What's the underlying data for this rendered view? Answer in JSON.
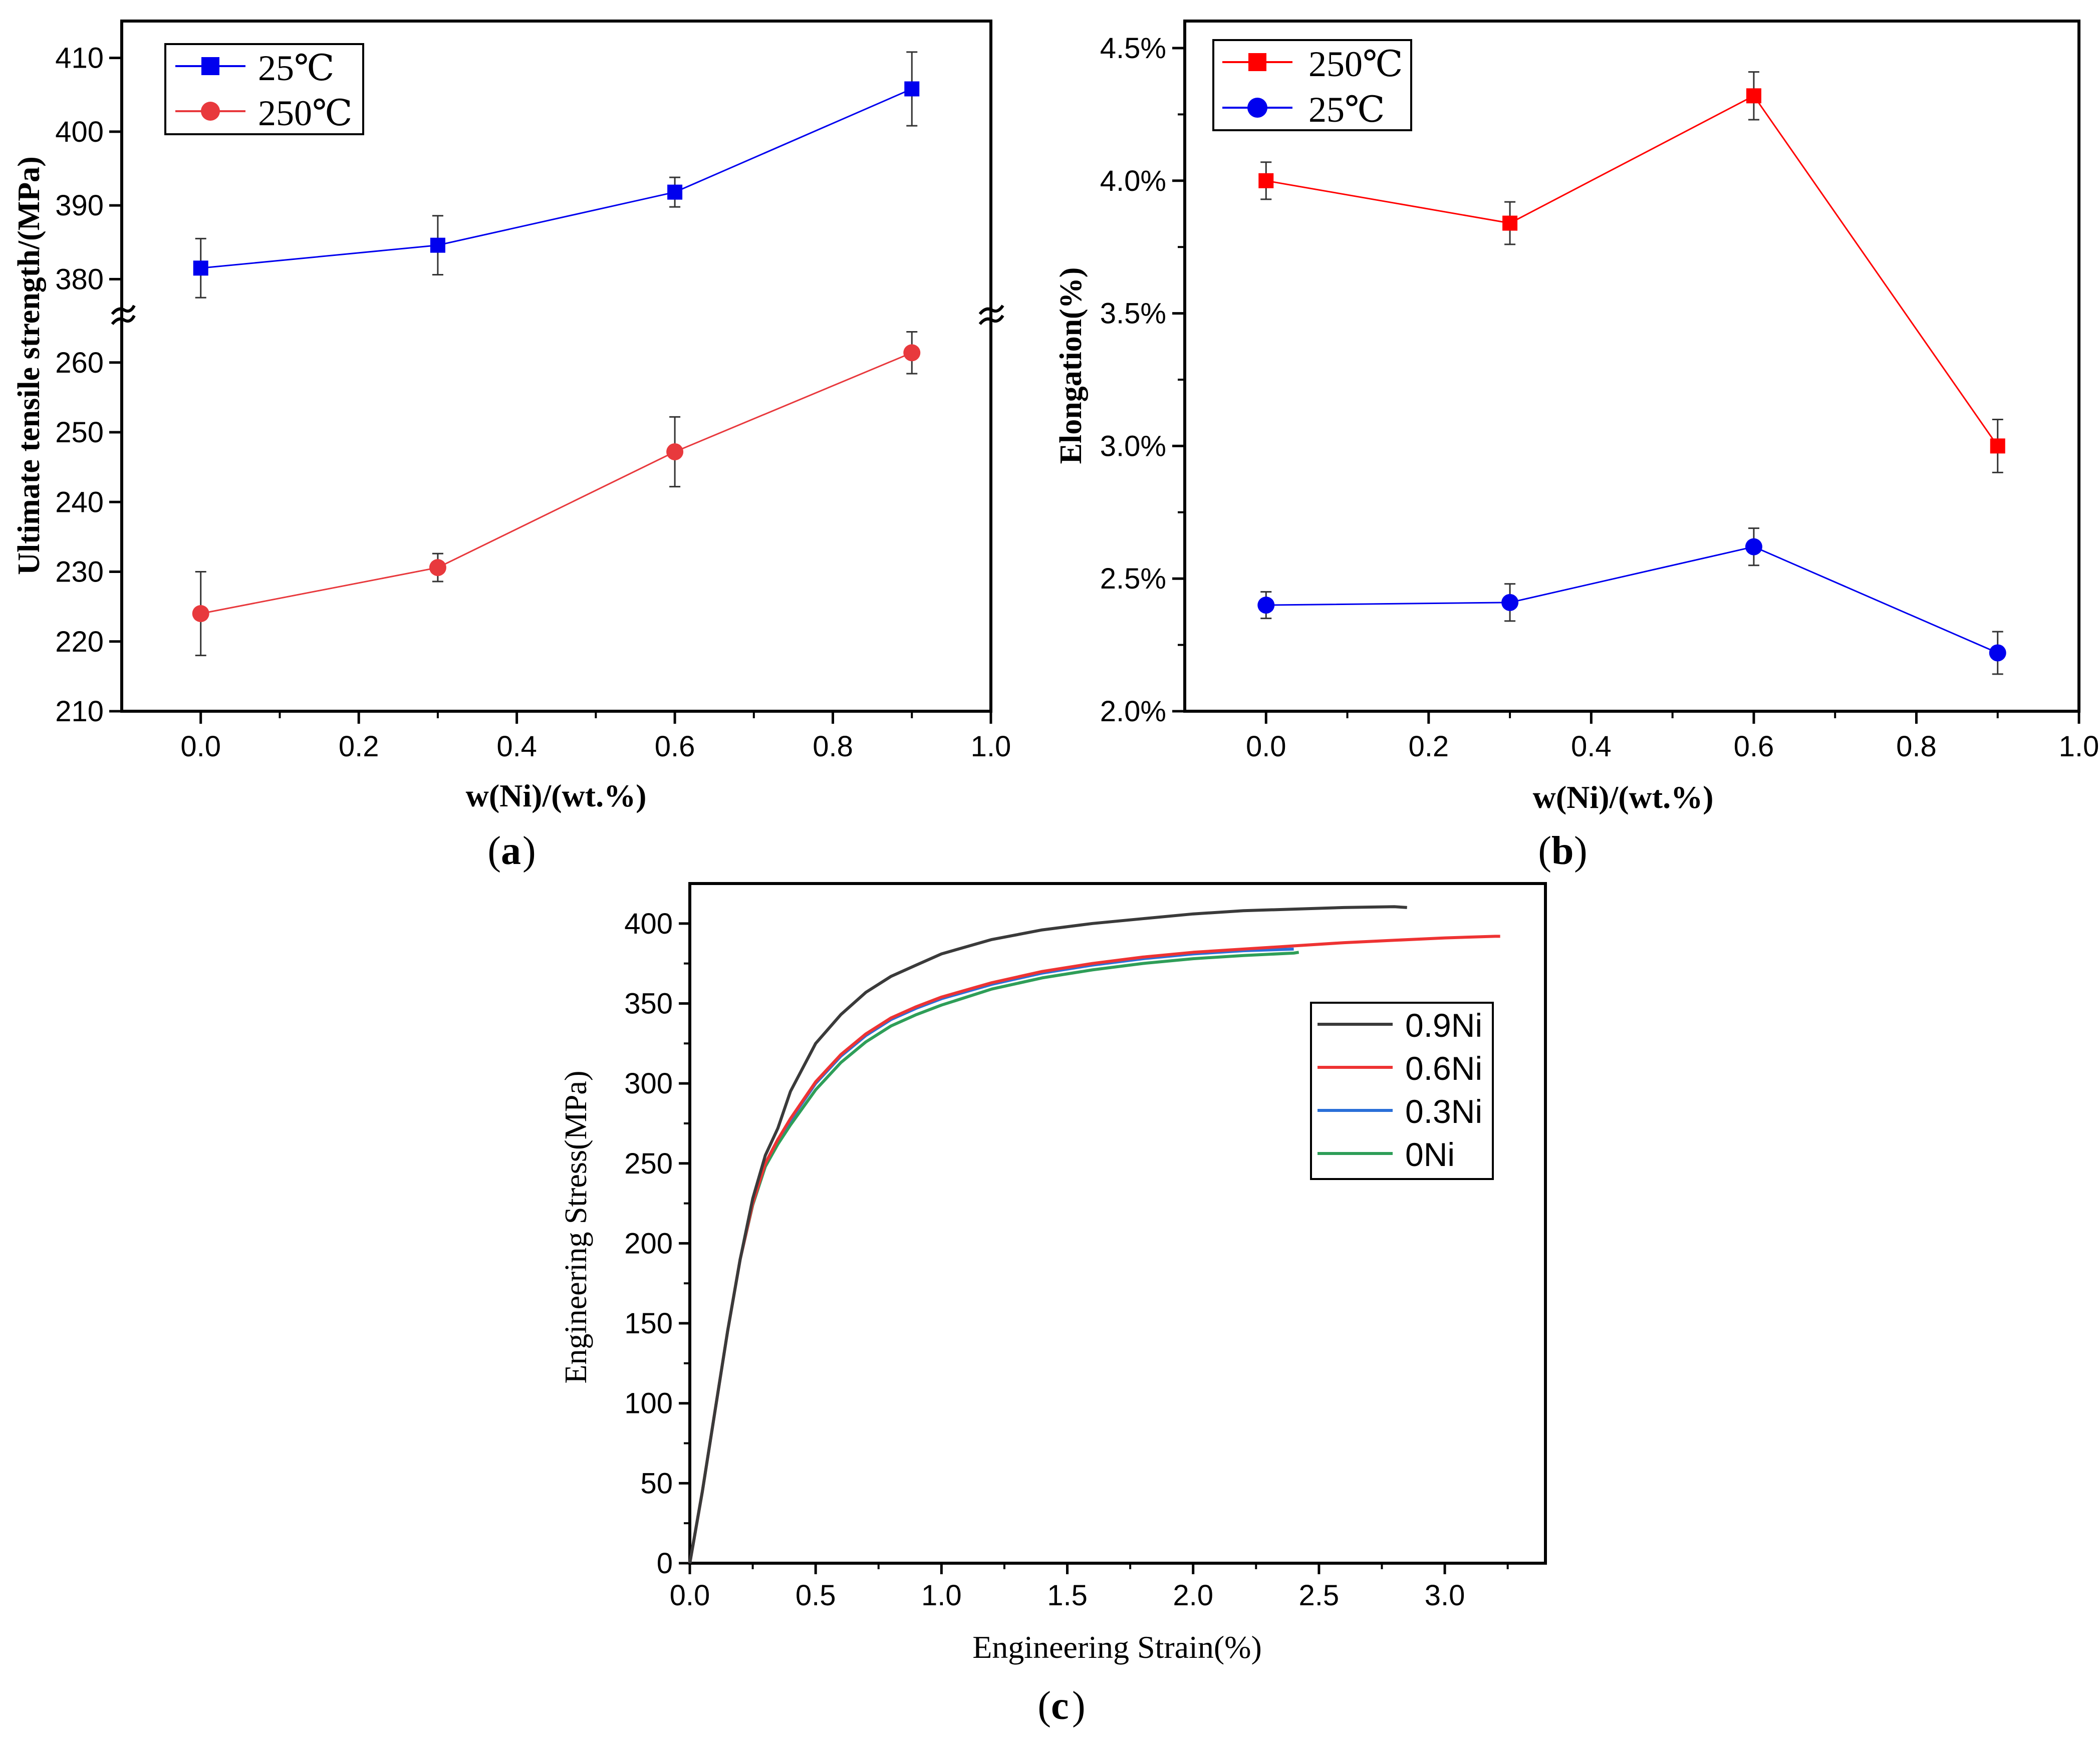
{
  "chart_data": [
    {
      "type": "line",
      "panel_label": "(a)",
      "panel_letter": "a",
      "xlabel": "w(Ni)/(wt.%)",
      "ylabel": "Ultimate tensile strength/(MPa)",
      "xlim": [
        -0.1,
        1.0
      ],
      "x_ticks": [
        "0.0",
        "0.2",
        "0.4",
        "0.6",
        "0.8",
        "1.0"
      ],
      "axis_break": true,
      "upper_ylim": [
        375,
        415
      ],
      "upper_y_ticks": [
        "380",
        "390",
        "400",
        "410"
      ],
      "lower_ylim": [
        210,
        263
      ],
      "lower_y_ticks": [
        "210",
        "220",
        "230",
        "240",
        "250",
        "260"
      ],
      "legend": "top-left",
      "series": [
        {
          "name": "25℃",
          "color": "#0000ee",
          "marker": "square",
          "segment": "upper",
          "x": [
            0.0,
            0.3,
            0.6,
            0.9
          ],
          "values": [
            381.5,
            384.6,
            391.8,
            405.8
          ],
          "error": [
            4.0,
            4.0,
            2.0,
            5.0
          ]
        },
        {
          "name": "250℃",
          "color": "#e8393d",
          "marker": "circle",
          "segment": "lower",
          "x": [
            0.0,
            0.3,
            0.6,
            0.9
          ],
          "values": [
            224.0,
            230.6,
            247.2,
            261.4
          ],
          "error": [
            6.0,
            2.0,
            5.0,
            3.0
          ]
        }
      ]
    },
    {
      "type": "line",
      "panel_label": "(b)",
      "panel_letter": "b",
      "xlabel": "w(Ni)/(wt.%)",
      "ylabel": "Elongation(%)",
      "xlim": [
        -0.1,
        1.0
      ],
      "x_ticks": [
        "0.0",
        "0.2",
        "0.4",
        "0.6",
        "0.8",
        "1.0"
      ],
      "ylim": [
        2.0,
        4.5
      ],
      "y_ticks": [
        "2.0%",
        "2.5%",
        "3.0%",
        "3.5%",
        "4.0%",
        "4.5%"
      ],
      "legend": "top-left",
      "series": [
        {
          "name": "250℃",
          "color": "#ff0000",
          "marker": "square",
          "x": [
            0.0,
            0.3,
            0.6,
            0.9
          ],
          "values": [
            4.0,
            3.84,
            4.32,
            3.0
          ],
          "error": [
            0.07,
            0.08,
            0.09,
            0.1
          ]
        },
        {
          "name": "25℃",
          "color": "#0000ee",
          "marker": "circle",
          "x": [
            0.0,
            0.3,
            0.6,
            0.9
          ],
          "values": [
            2.4,
            2.41,
            2.62,
            2.22
          ],
          "error": [
            0.05,
            0.07,
            0.07,
            0.08
          ]
        }
      ]
    },
    {
      "type": "line",
      "panel_label": "(c)",
      "panel_letter": "c",
      "xlabel": "Engineering Strain(%)",
      "ylabel": "Engineering Stress(MPa)",
      "xlim": [
        0.0,
        3.4
      ],
      "x_ticks": [
        "0.0",
        "0.5",
        "1.0",
        "1.5",
        "2.0",
        "2.5",
        "3.0"
      ],
      "ylim": [
        0,
        425
      ],
      "y_ticks": [
        "0",
        "50",
        "100",
        "150",
        "200",
        "250",
        "300",
        "350",
        "400"
      ],
      "legend": "right",
      "series": [
        {
          "name": "0.9Ni",
          "color": "#3a3a3a",
          "x": [
            0,
            0.05,
            0.1,
            0.15,
            0.2,
            0.25,
            0.3,
            0.35,
            0.4,
            0.5,
            0.6,
            0.7,
            0.8,
            0.9,
            1.0,
            1.2,
            1.4,
            1.6,
            1.8,
            2.0,
            2.2,
            2.4,
            2.6,
            2.8,
            2.85
          ],
          "values": [
            0,
            45,
            95,
            145,
            190,
            228,
            255,
            272,
            295,
            325,
            343,
            357,
            367,
            374,
            381,
            390,
            396,
            400,
            403,
            406,
            408,
            409,
            410,
            410.5,
            410
          ]
        },
        {
          "name": "0.6Ni",
          "color": "#ee3333",
          "x": [
            0,
            0.05,
            0.1,
            0.15,
            0.2,
            0.25,
            0.3,
            0.35,
            0.4,
            0.5,
            0.6,
            0.7,
            0.8,
            0.9,
            1.0,
            1.2,
            1.4,
            1.6,
            1.8,
            2.0,
            2.2,
            2.4,
            2.6,
            2.8,
            3.0,
            3.2,
            3.22
          ],
          "values": [
            0,
            45,
            95,
            145,
            190,
            225,
            250,
            265,
            278,
            301,
            318,
            331,
            341,
            348,
            354,
            363,
            370,
            375,
            379,
            382,
            384,
            386,
            388,
            389.5,
            391,
            392,
            392
          ]
        },
        {
          "name": "0.3Ni",
          "color": "#2a6fd8",
          "x": [
            0,
            0.05,
            0.1,
            0.15,
            0.2,
            0.25,
            0.3,
            0.35,
            0.4,
            0.5,
            0.6,
            0.7,
            0.8,
            0.9,
            1.0,
            1.2,
            1.4,
            1.6,
            1.8,
            2.0,
            2.2,
            2.4
          ],
          "values": [
            0,
            45,
            95,
            145,
            190,
            225,
            250,
            265,
            277,
            300,
            317,
            330,
            340,
            347,
            353,
            362,
            369,
            374,
            378,
            381,
            383,
            384
          ]
        },
        {
          "name": "0Ni",
          "color": "#2e9e58",
          "x": [
            0,
            0.05,
            0.1,
            0.15,
            0.2,
            0.25,
            0.3,
            0.35,
            0.4,
            0.5,
            0.6,
            0.7,
            0.8,
            0.9,
            1.0,
            1.2,
            1.4,
            1.6,
            1.8,
            2.0,
            2.2,
            2.4,
            2.42
          ],
          "values": [
            0,
            45,
            95,
            145,
            190,
            224,
            248,
            262,
            274,
            296,
            313,
            326,
            336,
            343,
            349,
            359,
            366,
            371,
            375,
            378,
            380,
            381.5,
            382
          ]
        }
      ]
    }
  ]
}
